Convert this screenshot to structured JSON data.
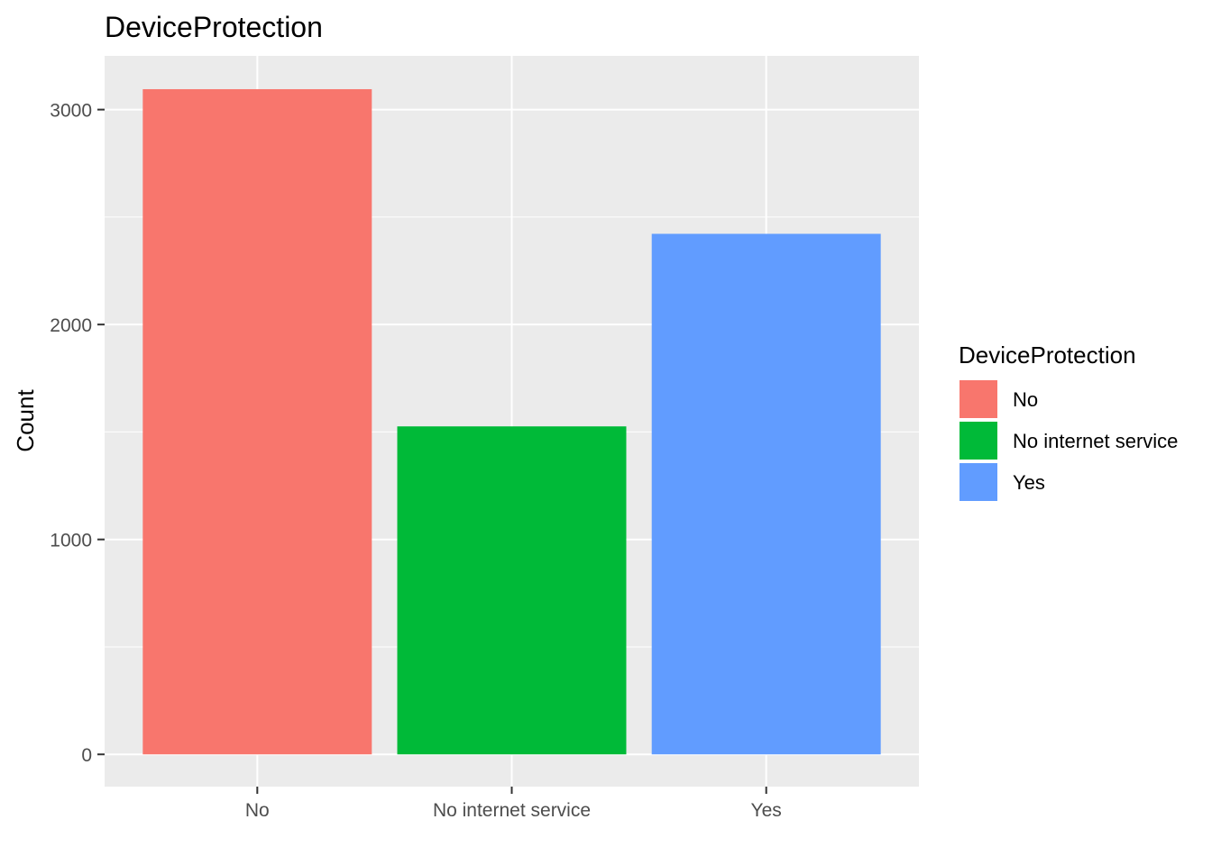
{
  "chart_data": {
    "type": "bar",
    "title": "DeviceProtection",
    "xlabel": "",
    "ylabel": "Count",
    "categories": [
      "No",
      "No internet service",
      "Yes"
    ],
    "values": [
      3095,
      1526,
      2422
    ],
    "colors": [
      "#F8766D",
      "#00BA38",
      "#619CFF"
    ],
    "ylim": [
      -150,
      3250
    ],
    "y_ticks": [
      0,
      1000,
      2000,
      3000
    ],
    "grid": true,
    "legend": {
      "title": "DeviceProtection",
      "placement": "right",
      "entries": [
        "No",
        "No internet service",
        "Yes"
      ]
    }
  }
}
